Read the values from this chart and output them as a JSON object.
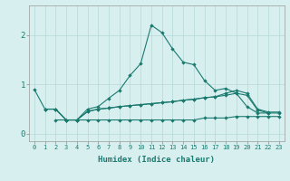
{
  "xlabel": "Humidex (Indice chaleur)",
  "background_color": "#d8eff0",
  "grid_color": "#b8d8d8",
  "line_color": "#1a7a6e",
  "xlim": [
    -0.5,
    23.5
  ],
  "ylim": [
    -0.15,
    2.6
  ],
  "yticks": [
    0,
    1,
    2
  ],
  "xticks": [
    0,
    1,
    2,
    3,
    4,
    5,
    6,
    7,
    8,
    9,
    10,
    11,
    12,
    13,
    14,
    15,
    16,
    17,
    18,
    19,
    20,
    21,
    22,
    23
  ],
  "line1_x": [
    0,
    1,
    2,
    3,
    4,
    5,
    6,
    7,
    8,
    9,
    10,
    11,
    12,
    13,
    14,
    15,
    16,
    17,
    18,
    19,
    20,
    21,
    22
  ],
  "line1_y": [
    0.9,
    0.5,
    0.5,
    0.28,
    0.28,
    0.5,
    0.55,
    0.72,
    0.88,
    1.18,
    1.42,
    2.2,
    2.05,
    1.72,
    1.45,
    1.4,
    1.08,
    0.88,
    0.92,
    0.82,
    0.55,
    0.42,
    0.42
  ],
  "line2_x": [
    1,
    2,
    3,
    4,
    5,
    6,
    7,
    8,
    9,
    10,
    11,
    12,
    13,
    14,
    15,
    16,
    17,
    18,
    19,
    20,
    21,
    22,
    23
  ],
  "line2_y": [
    0.5,
    0.5,
    0.28,
    0.28,
    0.45,
    0.5,
    0.52,
    0.55,
    0.57,
    0.59,
    0.61,
    0.63,
    0.65,
    0.68,
    0.7,
    0.73,
    0.75,
    0.78,
    0.82,
    0.78,
    0.48,
    0.42,
    0.42
  ],
  "line3_x": [
    1,
    2,
    3,
    4,
    5,
    6,
    7,
    8,
    9,
    10,
    11,
    12,
    13,
    14,
    15,
    16,
    17,
    18,
    19,
    20,
    21,
    22,
    23
  ],
  "line3_y": [
    0.5,
    0.5,
    0.28,
    0.28,
    0.45,
    0.5,
    0.52,
    0.55,
    0.57,
    0.59,
    0.61,
    0.63,
    0.65,
    0.68,
    0.7,
    0.73,
    0.75,
    0.82,
    0.88,
    0.82,
    0.5,
    0.44,
    0.44
  ],
  "line4_x": [
    2,
    3,
    4,
    5,
    6,
    7,
    8,
    9,
    10,
    11,
    12,
    13,
    14,
    15,
    16,
    17,
    18,
    19,
    20,
    21,
    22,
    23
  ],
  "line4_y": [
    0.28,
    0.28,
    0.28,
    0.28,
    0.28,
    0.28,
    0.28,
    0.28,
    0.28,
    0.28,
    0.28,
    0.28,
    0.28,
    0.28,
    0.32,
    0.32,
    0.32,
    0.35,
    0.35,
    0.35,
    0.35,
    0.35
  ]
}
